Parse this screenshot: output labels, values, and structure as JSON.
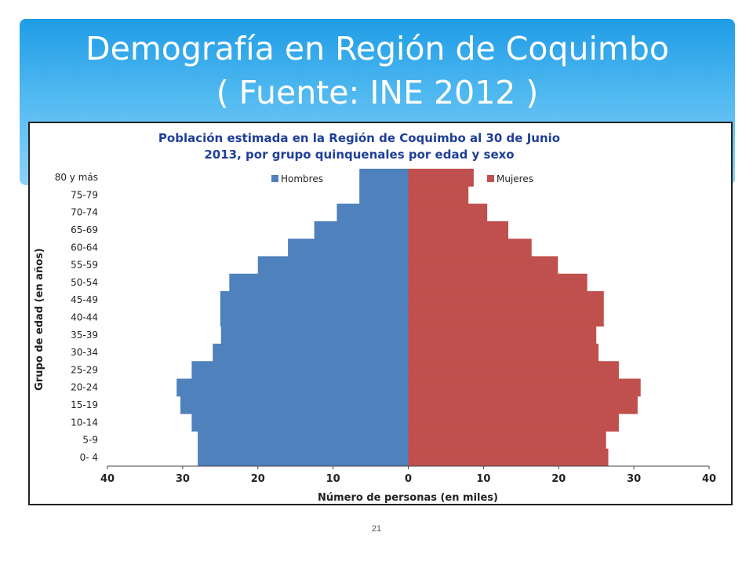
{
  "slide": {
    "title_line1": "Demografía en Región de Coquimbo",
    "title_line2": "( Fuente: INE 2012 )",
    "page_number": "21"
  },
  "colors": {
    "hombres": "#4f81bd",
    "mujeres": "#c0504d",
    "chart_title": "#1f3f99"
  },
  "chart_data": {
    "type": "bar",
    "orientation": "horizontal-population-pyramid",
    "title": "Población estimada en la Región de Coquimbo al 30 de Junio 2013, por grupo quinquenales por edad y sexo",
    "title_line1": "Población estimada en la Región de Coquimbo al 30 de Junio",
    "title_line2": "2013, por grupo quinquenales por edad y sexo",
    "xlabel": "Número de personas (en miles)",
    "ylabel": "Grupo de edad (en años)",
    "xlim": [
      -40,
      40
    ],
    "xticks": [
      -40,
      -30,
      -20,
      -10,
      0,
      10,
      20,
      30,
      40
    ],
    "xtick_labels": [
      "40",
      "30",
      "20",
      "10",
      "0",
      "10",
      "20",
      "30",
      "40"
    ],
    "legend_position": "top",
    "categories": [
      "0- 4",
      "5-9",
      "10-14",
      "15-19",
      "20-24",
      "25-29",
      "30-34",
      "35-39",
      "40-44",
      "45-49",
      "50-54",
      "55-59",
      "60-64",
      "65-69",
      "70-74",
      "75-79",
      "80 y más"
    ],
    "series": [
      {
        "name": "Hombres",
        "values": [
          28.0,
          28.0,
          28.8,
          30.3,
          30.8,
          28.8,
          26.0,
          24.9,
          25.0,
          25.0,
          23.8,
          20.0,
          16.0,
          12.5,
          9.5,
          6.5,
          6.5
        ]
      },
      {
        "name": "Mujeres",
        "values": [
          26.6,
          26.3,
          28.0,
          30.5,
          30.9,
          28.0,
          25.3,
          25.0,
          26.0,
          26.0,
          23.8,
          19.9,
          16.4,
          13.3,
          10.5,
          8.0,
          8.7
        ]
      }
    ]
  }
}
